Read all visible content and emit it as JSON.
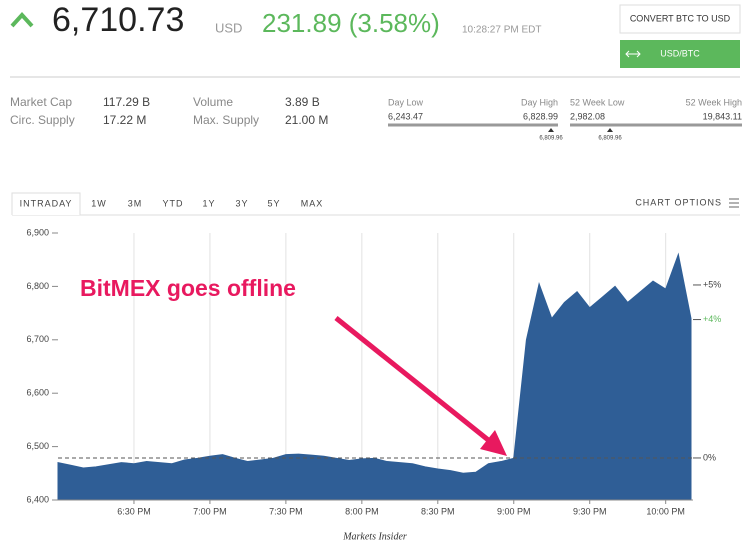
{
  "header": {
    "price": "6,710.73",
    "currency": "USD",
    "change": "231.89 (3.58%)",
    "time": "10:28:27 PM EDT",
    "buttons": [
      "CONVERT BTC TO USD",
      "USD/BTC"
    ]
  },
  "stats": [
    {
      "label": "Market Cap",
      "value": "117.29 B"
    },
    {
      "label": "Circ. Supply",
      "value": "17.22 M"
    },
    {
      "label": "Volume",
      "value": "3.89 B"
    },
    {
      "label": "Max. Supply",
      "value": "21.00 M"
    }
  ],
  "ranges": [
    {
      "low_label": "Day Low",
      "low": "6,243.47",
      "high_label": "Day High",
      "high": "6,828.99",
      "marker": "6,809.96"
    },
    {
      "low_label": "52 Week Low",
      "low": "2,982.08",
      "high_label": "52 Week High",
      "high": "19,843.11",
      "marker": "6,809.96"
    }
  ],
  "tabs": [
    "INTRADAY",
    "1W",
    "3M",
    "YTD",
    "1Y",
    "3Y",
    "5Y",
    "MAX"
  ],
  "chart_options": "CHART OPTIONS",
  "chart_data": {
    "type": "area",
    "annotation": "BitMEX goes offline",
    "source": "Markets Insider",
    "color": "#2f5e96",
    "categories": [
      null,
      null,
      null,
      null,
      null,
      null,
      "6:30 PM",
      null,
      null,
      null,
      null,
      null,
      "7:00 PM",
      null,
      null,
      null,
      null,
      null,
      "7:30 PM",
      null,
      null,
      null,
      null,
      null,
      "8:00 PM",
      null,
      null,
      null,
      null,
      null,
      "8:30 PM",
      null,
      null,
      null,
      null,
      null,
      "9:00 PM",
      null,
      null,
      null,
      null,
      null,
      "9:30 PM",
      null,
      null,
      null,
      null,
      null,
      "10:00 PM",
      null,
      null
    ],
    "values": [
      6470,
      6465,
      6460,
      6462,
      6466,
      6470,
      6468,
      6472,
      6470,
      6468,
      6475,
      6478,
      6482,
      6485,
      6478,
      6472,
      6475,
      6478,
      6485,
      6486,
      6484,
      6482,
      6478,
      6474,
      6477,
      6478,
      6472,
      6470,
      6468,
      6462,
      6458,
      6455,
      6450,
      6452,
      6468,
      6472,
      6478,
      6700,
      6805,
      6740,
      6770,
      6790,
      6760,
      6780,
      6800,
      6770,
      6790,
      6810,
      6795,
      6860,
      6740
    ],
    "ylim": [
      6400,
      6900
    ],
    "yticks": [
      {
        "value": 6400,
        "label": "6,400"
      },
      {
        "value": 6500,
        "label": "6,500"
      },
      {
        "value": 6600,
        "label": "6,600"
      },
      {
        "value": 6700,
        "label": "6,700"
      },
      {
        "value": 6800,
        "label": "6,800"
      },
      {
        "value": 6900,
        "label": "6,900"
      }
    ],
    "y2lim": [
      -1.215,
      6.502
    ],
    "y2ticks": [
      {
        "value": 5,
        "label": "+5%",
        "color": "#444444"
      },
      {
        "value": 4,
        "label": "+4%",
        "color": "#5cb85c"
      },
      {
        "value": 0,
        "label": "0%",
        "color": "#444444",
        "line": "dashed"
      }
    ],
    "grid": true
  }
}
